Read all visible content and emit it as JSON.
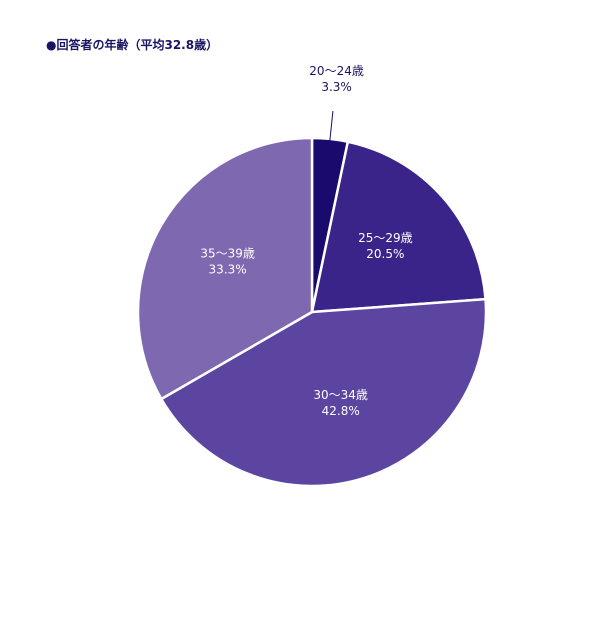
{
  "chart_data": {
    "type": "pie",
    "title": "●回答者の年齢（平均32.8歳）",
    "start_angle_deg": 0,
    "direction": "clockwise",
    "slices": [
      {
        "label": "20～24歳",
        "value": 3.3,
        "value_label": "3.3%",
        "color": "#1a0a6e",
        "label_color": "#1a1463",
        "label_outside": true
      },
      {
        "label": "25～29歳",
        "value": 20.5,
        "value_label": "20.5%",
        "color": "#3a2489",
        "label_color": "#ffffff",
        "label_outside": false
      },
      {
        "label": "30～34歳",
        "value": 42.8,
        "value_label": "42.8%",
        "color": "#5b45a0",
        "label_color": "#ffffff",
        "label_outside": false
      },
      {
        "label": "35～39歳",
        "value": 33.3,
        "value_label": "33.3%",
        "color": "#7e69b0",
        "label_color": "#ffffff",
        "label_outside": false
      }
    ],
    "slice_border_color": "#ffffff"
  }
}
